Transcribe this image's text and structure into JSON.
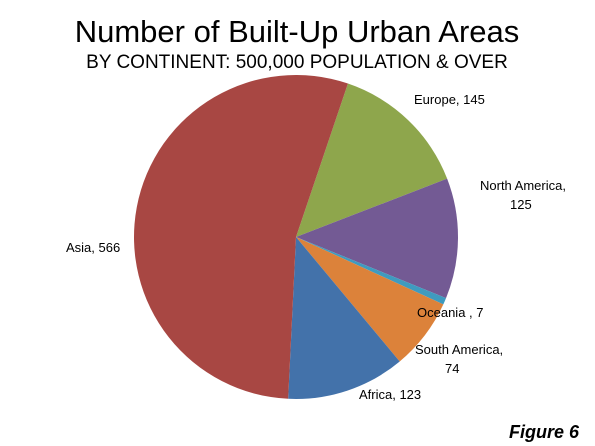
{
  "chart_data": {
    "type": "pie",
    "title": "Number of Built-Up Urban Areas",
    "subtitle": "BY CONTINENT: 500,000 POPULATION & OVER",
    "values": [
      145,
      125,
      7,
      74,
      123,
      566
    ],
    "value_labels": [
      "Europe, 145",
      "North America, 125",
      "Oceania , 7",
      "South America, 74",
      "Africa, 123",
      "Asia, 566"
    ],
    "colors": [
      "#8ea64c",
      "#735a94",
      "#3f9bbf",
      "#dc823a",
      "#4372aa",
      "#a84743"
    ],
    "annotation": "Figure 6"
  }
}
